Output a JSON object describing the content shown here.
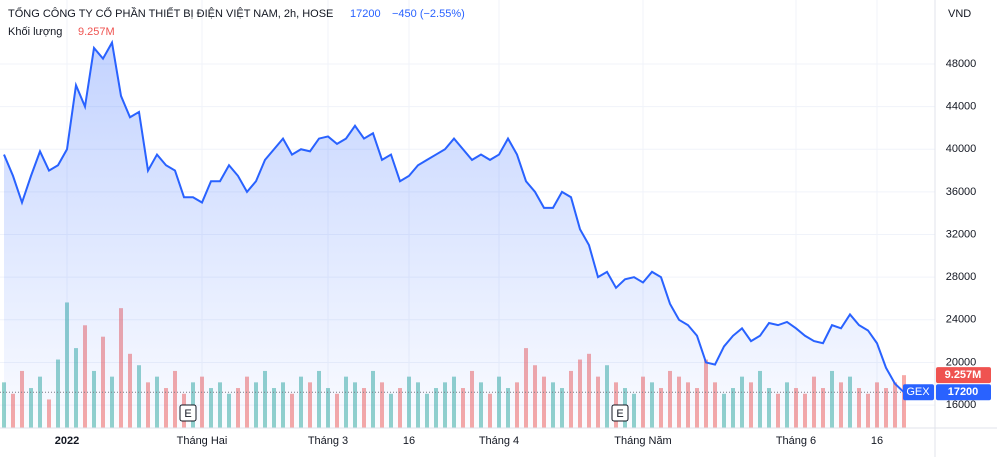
{
  "chart_data": {
    "type": "area",
    "title": "TỔNG CÔNG TY CỔ PHẦN THIẾT BỊ ĐIỆN VIỆT NAM, 2h, HOSE",
    "change": "−450 (−2.55%)",
    "volume_title": "Khối lượng",
    "volume_label": "9.257M",
    "currency": "VND",
    "symbol": "GEX",
    "events": [
      "E",
      "E"
    ],
    "categories": [
      null,
      null,
      null,
      null,
      null,
      null,
      null,
      "2022",
      null,
      null,
      null,
      null,
      null,
      null,
      null,
      null,
      null,
      null,
      null,
      null,
      null,
      null,
      "Tháng Hai",
      null,
      null,
      null,
      null,
      null,
      null,
      null,
      null,
      null,
      null,
      null,
      null,
      null,
      "Tháng 3",
      null,
      null,
      null,
      null,
      null,
      null,
      null,
      null,
      "16",
      null,
      null,
      null,
      null,
      null,
      null,
      null,
      null,
      null,
      "Tháng 4",
      null,
      null,
      null,
      null,
      null,
      null,
      null,
      null,
      null,
      null,
      null,
      null,
      null,
      null,
      null,
      "Tháng Năm",
      null,
      null,
      null,
      null,
      null,
      null,
      null,
      null,
      null,
      null,
      null,
      null,
      null,
      null,
      null,
      null,
      "Tháng 6",
      null,
      null,
      null,
      null,
      null,
      null,
      null,
      null,
      "16",
      null,
      null,
      null
    ],
    "series": [
      {
        "name": "GEX",
        "color": "#2962ff",
        "values": [
          39500,
          37500,
          35000,
          37500,
          39800,
          38000,
          38500,
          40000,
          46000,
          44000,
          49500,
          48500,
          50000,
          45000,
          43000,
          43500,
          38000,
          39500,
          38500,
          38000,
          35500,
          35500,
          35000,
          37000,
          37000,
          38500,
          37500,
          36000,
          37000,
          39000,
          40000,
          41000,
          39500,
          40000,
          39800,
          41000,
          41200,
          40500,
          41000,
          42200,
          41000,
          41500,
          39000,
          39500,
          37000,
          37500,
          38500,
          39000,
          39500,
          40000,
          41000,
          40000,
          39000,
          39500,
          39000,
          39500,
          41000,
          39500,
          37000,
          36000,
          34500,
          34500,
          36000,
          35500,
          32500,
          31000,
          28000,
          28500,
          27000,
          27800,
          28000,
          27500,
          28500,
          28000,
          25500,
          24000,
          23500,
          22500,
          20000,
          19800,
          21500,
          22500,
          23200,
          22000,
          22500,
          23700,
          23500,
          23800,
          23200,
          22500,
          22000,
          21800,
          23500,
          23200,
          24500,
          23500,
          23000,
          21800,
          19500,
          18000,
          17200
        ]
      },
      {
        "name": "Khối lượng",
        "axis": "y2",
        "up_color": "rgba(38,166,154,0.5)",
        "down_color": "rgba(239,83,80,0.5)",
        "values": [
          8,
          6,
          10,
          7,
          9,
          5,
          12,
          22,
          14,
          18,
          10,
          16,
          9,
          21,
          13,
          11,
          8,
          9,
          7,
          10,
          6,
          8,
          9,
          7,
          8,
          6,
          7,
          9,
          8,
          10,
          7,
          8,
          6,
          9,
          8,
          10,
          7,
          6,
          9,
          8,
          7,
          10,
          8,
          6,
          7,
          9,
          8,
          6,
          7,
          8,
          9,
          7,
          10,
          8,
          6,
          9,
          7,
          8,
          14,
          11,
          9,
          8,
          7,
          10,
          12,
          13,
          9,
          11,
          8,
          7,
          6,
          9,
          8,
          7,
          10,
          9,
          8,
          7,
          12,
          8,
          6,
          7,
          9,
          8,
          10,
          7,
          6,
          8,
          7,
          6,
          9,
          7,
          10,
          8,
          9,
          7,
          6,
          8,
          7,
          8,
          9.257
        ]
      }
    ],
    "ylim": [
      13850,
      54000
    ],
    "yticks": [
      16000,
      20000,
      24000,
      28000,
      32000,
      36000,
      40000,
      44000,
      48000
    ],
    "y2lim": [
      0,
      75
    ],
    "grid": true
  }
}
